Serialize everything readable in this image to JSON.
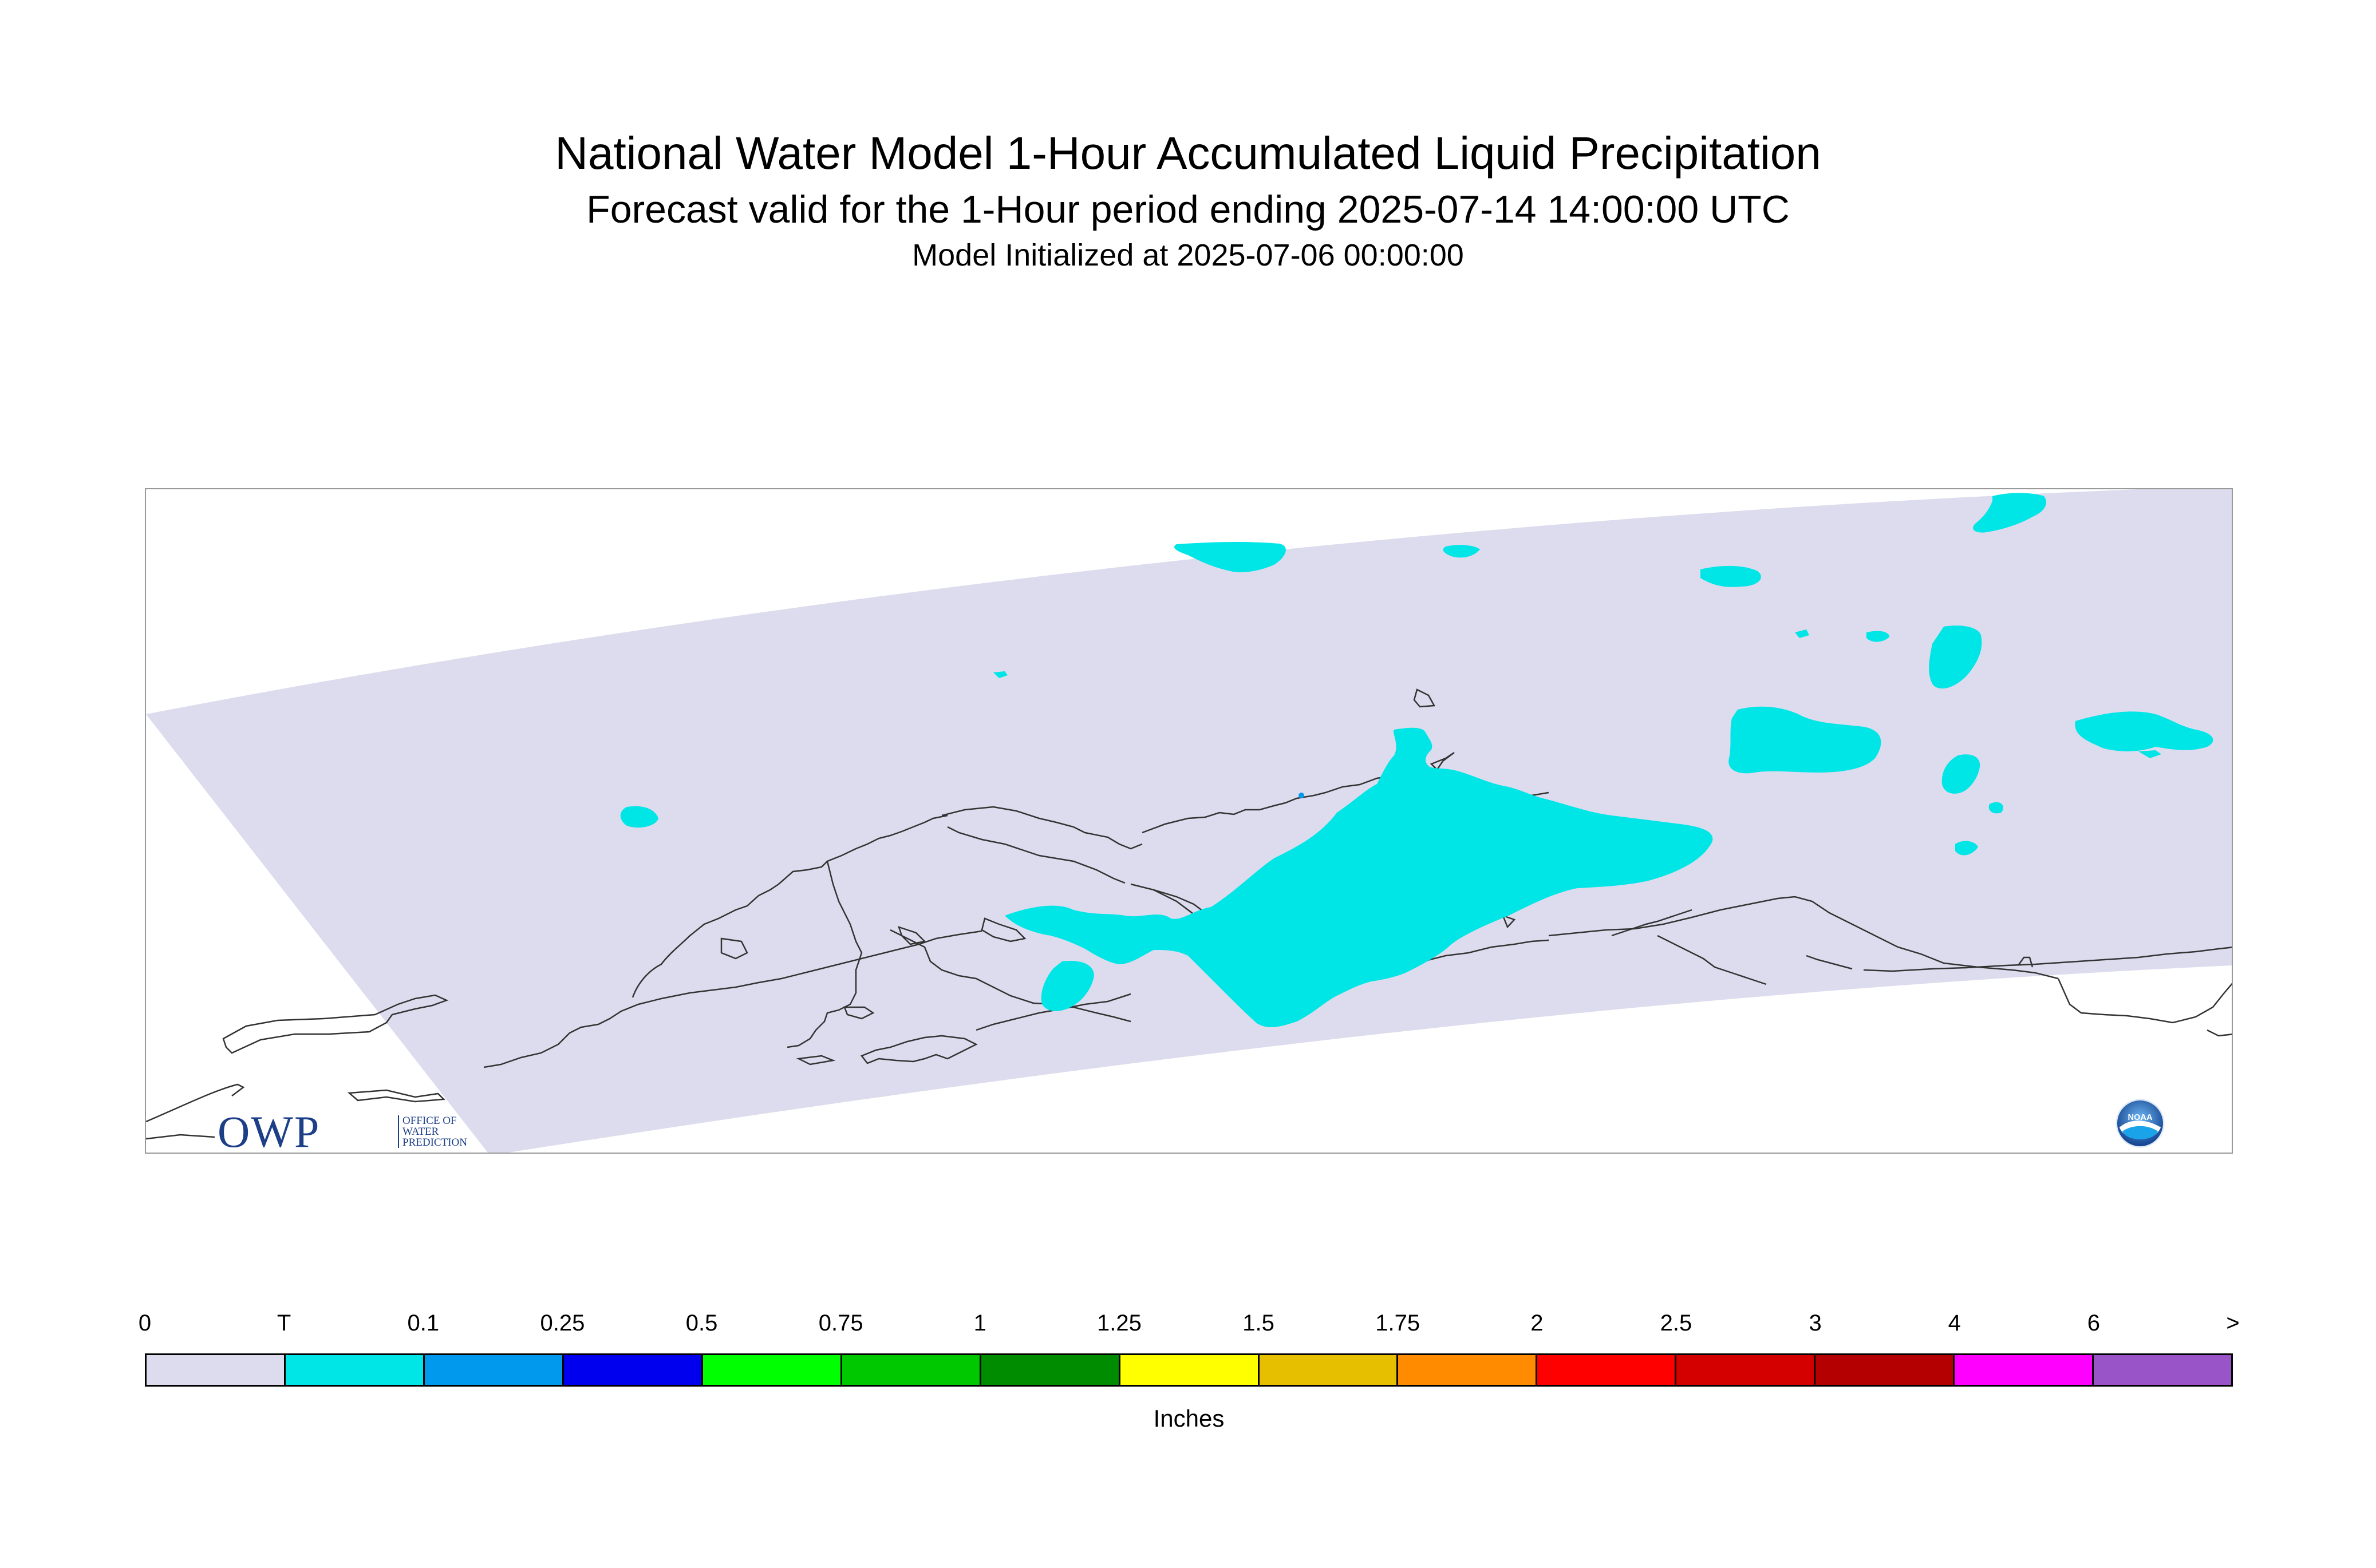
{
  "header": {
    "title": "National Water Model 1-Hour Accumulated Liquid Precipitation",
    "subtitle": "Forecast valid for the 1-Hour period ending 2025-07-14 14:00:00 UTC",
    "initialized": "Model Initialized at 2025-07-06 00:00:00"
  },
  "map": {
    "domain_color": "#dcdcee",
    "land_outline_color": "#333333",
    "precip_color": "#00e5e5"
  },
  "logos": {
    "owp_letters": "OWP",
    "owp_text": "OFFICE OF WATER PREDICTION",
    "noaa_text": "NOAA"
  },
  "legend": {
    "ticks": [
      "0",
      "T",
      "0.1",
      "0.25",
      "0.5",
      "0.75",
      "1",
      "1.25",
      "1.5",
      "1.75",
      "2",
      "2.5",
      "3",
      "4",
      "6",
      ">"
    ],
    "colors": [
      "#dcdcee",
      "#00e5e5",
      "#0099ee",
      "#0000ee",
      "#00ff00",
      "#00c800",
      "#008c00",
      "#ffff00",
      "#e6bf00",
      "#ff8c00",
      "#ff0000",
      "#d40000",
      "#b40000",
      "#ff00ff",
      "#9955c8"
    ],
    "units": "Inches"
  }
}
